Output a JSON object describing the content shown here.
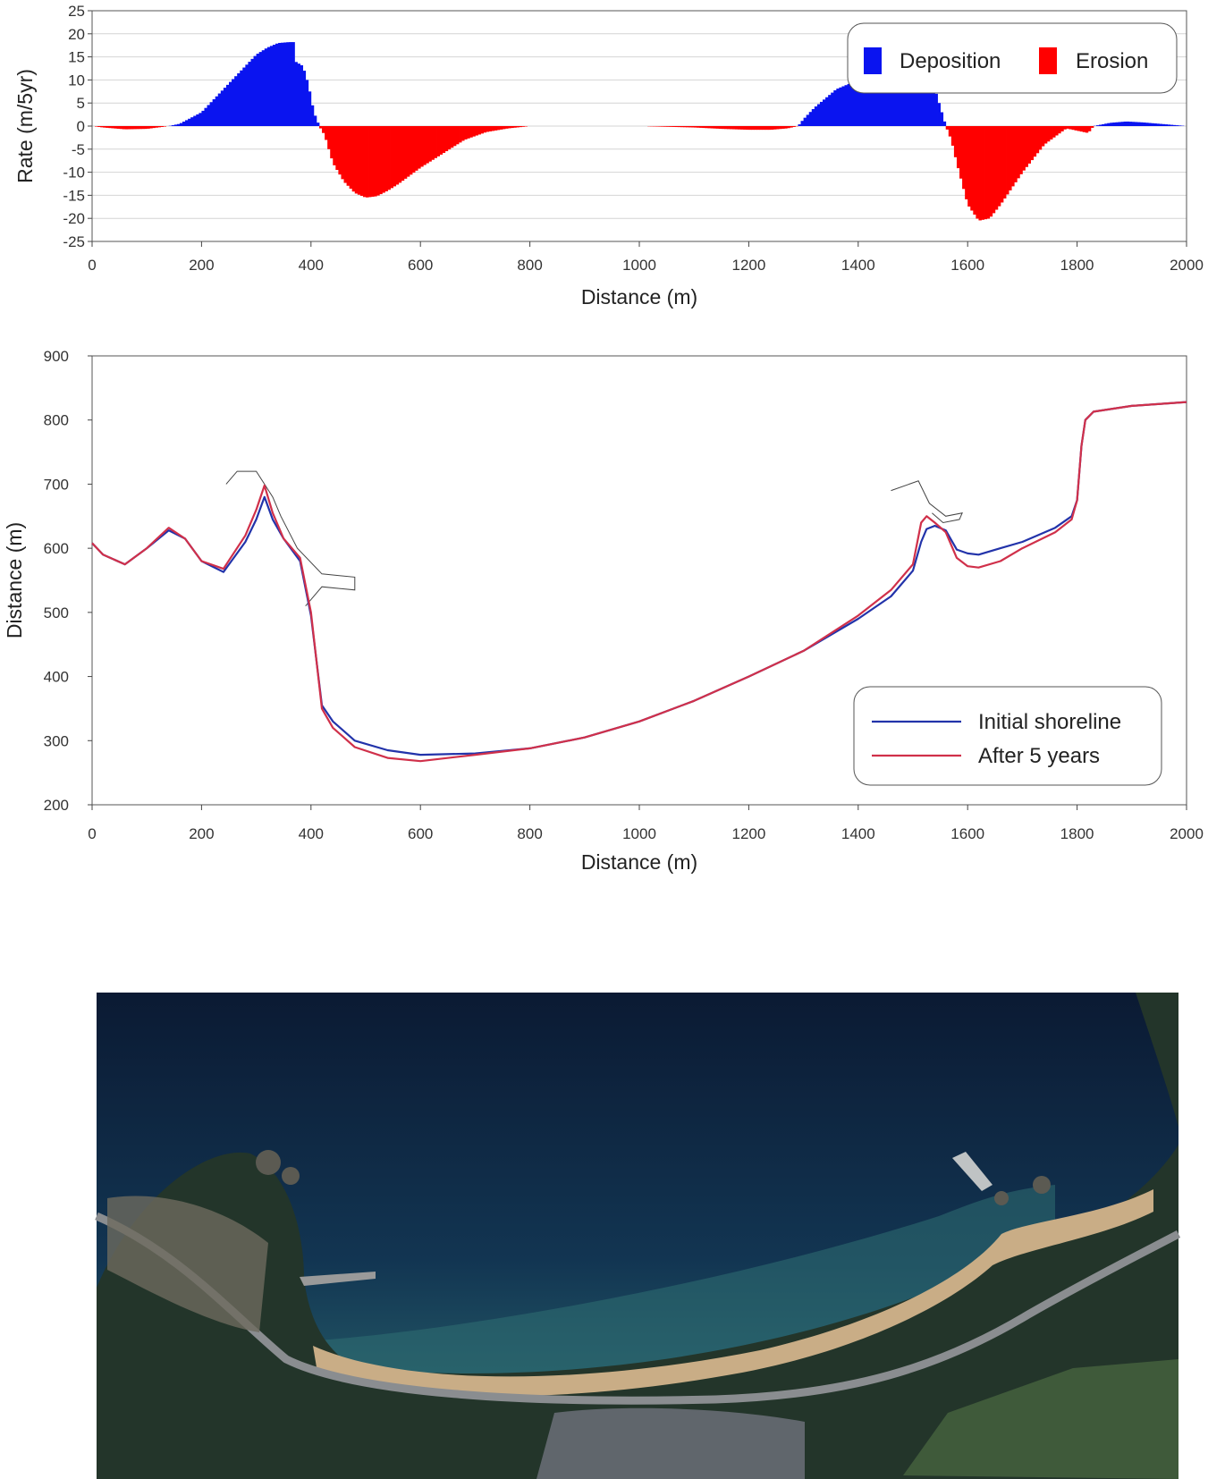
{
  "chart_data": [
    {
      "type": "bar",
      "xlabel": "Distance (m)",
      "ylabel": "Rate (m/5yr)",
      "xlim": [
        0,
        2000
      ],
      "ylim": [
        -25,
        25
      ],
      "x_ticks": [
        "0",
        "200",
        "400",
        "600",
        "800",
        "1000",
        "1200",
        "1400",
        "1600",
        "1800",
        "2000"
      ],
      "y_ticks": [
        "25",
        "20",
        "15",
        "10",
        "5",
        "0",
        "-5",
        "-10",
        "-15",
        "-20",
        "-25"
      ],
      "grid": "horizontal",
      "legend_position": "top-right",
      "legend": [
        "Deposition",
        "Erosion"
      ],
      "colors": {
        "deposition": "#0a14f0",
        "erosion": "#ff0000"
      },
      "profile": {
        "x": [
          0,
          20,
          60,
          100,
          120,
          140,
          160,
          200,
          240,
          280,
          300,
          320,
          340,
          360,
          370,
          371,
          385,
          395,
          405,
          415,
          425,
          430,
          440,
          460,
          480,
          500,
          520,
          540,
          560,
          600,
          640,
          680,
          720,
          760,
          800,
          820,
          900,
          1000,
          1100,
          1150,
          1200,
          1240,
          1270,
          1290,
          1300,
          1320,
          1360,
          1400,
          1440,
          1480,
          1520,
          1540,
          1555,
          1560,
          1570,
          1580,
          1600,
          1620,
          1640,
          1660,
          1700,
          1740,
          1780,
          1800,
          1820,
          1830,
          1860,
          1890,
          1920,
          1960,
          2000
        ],
        "y": [
          0,
          -0.3,
          -0.7,
          -0.6,
          -0.3,
          0,
          0.5,
          3,
          8,
          13,
          15.5,
          17,
          18,
          18.2,
          18.2,
          14,
          13,
          9,
          3,
          0,
          -2,
          -4,
          -8,
          -12,
          -14.5,
          -15.5,
          -15.2,
          -14,
          -12.5,
          -9,
          -6,
          -3,
          -1.3,
          -0.5,
          0,
          0,
          0,
          0,
          -0.3,
          -0.6,
          -0.8,
          -0.8,
          -0.5,
          0,
          1.5,
          4,
          8,
          10,
          10.5,
          10.5,
          10,
          8,
          2,
          0,
          -3,
          -8,
          -17,
          -20.5,
          -20,
          -17,
          -10,
          -4,
          -0.5,
          -1,
          -1.5,
          0,
          0.7,
          1,
          0.8,
          0.4,
          0
        ]
      }
    },
    {
      "type": "line",
      "xlabel": "Distance (m)",
      "ylabel": "Distance (m)",
      "xlim": [
        0,
        2000
      ],
      "ylim": [
        200,
        900
      ],
      "x_ticks": [
        "0",
        "200",
        "400",
        "600",
        "800",
        "1000",
        "1200",
        "1400",
        "1600",
        "1800",
        "2000"
      ],
      "y_ticks": [
        "900",
        "800",
        "700",
        "600",
        "500",
        "400",
        "300",
        "200"
      ],
      "grid": false,
      "legend_position": "bottom-right",
      "series": [
        {
          "name": "Initial shoreline",
          "color": "#2233aa",
          "x": [
            0,
            20,
            60,
            100,
            140,
            170,
            200,
            240,
            280,
            300,
            315,
            330,
            350,
            380,
            400,
            420,
            440,
            480,
            540,
            600,
            700,
            800,
            900,
            1000,
            1100,
            1200,
            1300,
            1400,
            1460,
            1500,
            1515,
            1525,
            1540,
            1560,
            1580,
            1600,
            1620,
            1660,
            1700,
            1760,
            1790,
            1800,
            1808,
            1815,
            1830,
            1900,
            2000
          ],
          "y": [
            608,
            590,
            575,
            600,
            628,
            615,
            580,
            563,
            610,
            645,
            680,
            645,
            615,
            580,
            495,
            355,
            330,
            300,
            285,
            278,
            280,
            288,
            305,
            330,
            362,
            400,
            440,
            490,
            525,
            565,
            610,
            630,
            635,
            628,
            598,
            592,
            590,
            600,
            610,
            632,
            650,
            675,
            760,
            800,
            813,
            822,
            828
          ]
        },
        {
          "name": "After 5 years",
          "color": "#d0304a",
          "x": [
            0,
            20,
            60,
            100,
            140,
            170,
            200,
            240,
            280,
            300,
            315,
            330,
            350,
            380,
            400,
            420,
            440,
            480,
            540,
            600,
            700,
            800,
            900,
            1000,
            1100,
            1200,
            1300,
            1400,
            1460,
            1500,
            1515,
            1525,
            1540,
            1560,
            1580,
            1600,
            1620,
            1660,
            1700,
            1760,
            1790,
            1800,
            1808,
            1815,
            1830,
            1900,
            2000
          ],
          "y": [
            608,
            590,
            575,
            600,
            632,
            615,
            580,
            568,
            620,
            660,
            698,
            655,
            615,
            585,
            500,
            350,
            320,
            290,
            273,
            268,
            278,
            288,
            305,
            330,
            362,
            400,
            440,
            495,
            535,
            575,
            640,
            650,
            640,
            625,
            585,
            572,
            570,
            580,
            600,
            625,
            645,
            675,
            760,
            800,
            813,
            822,
            828
          ]
        }
      ],
      "structures": [
        {
          "x": [
            245,
            265,
            300,
            315,
            330,
            345,
            375,
            420,
            480,
            480,
            420,
            390
          ],
          "y": [
            700,
            720,
            720,
            700,
            680,
            650,
            600,
            560,
            555,
            535,
            540,
            510
          ]
        },
        {
          "x": [
            1460,
            1510,
            1530,
            1560,
            1590,
            1585,
            1555,
            1535
          ],
          "y": [
            690,
            705,
            670,
            650,
            655,
            645,
            640,
            655
          ]
        }
      ]
    }
  ],
  "photo": {
    "colors": {
      "deep_water": "#0d1e3a",
      "shallow_water": "#2f6f72",
      "sand": "#c9ad86",
      "forest": "#23352a",
      "road": "#8a8d90"
    }
  }
}
